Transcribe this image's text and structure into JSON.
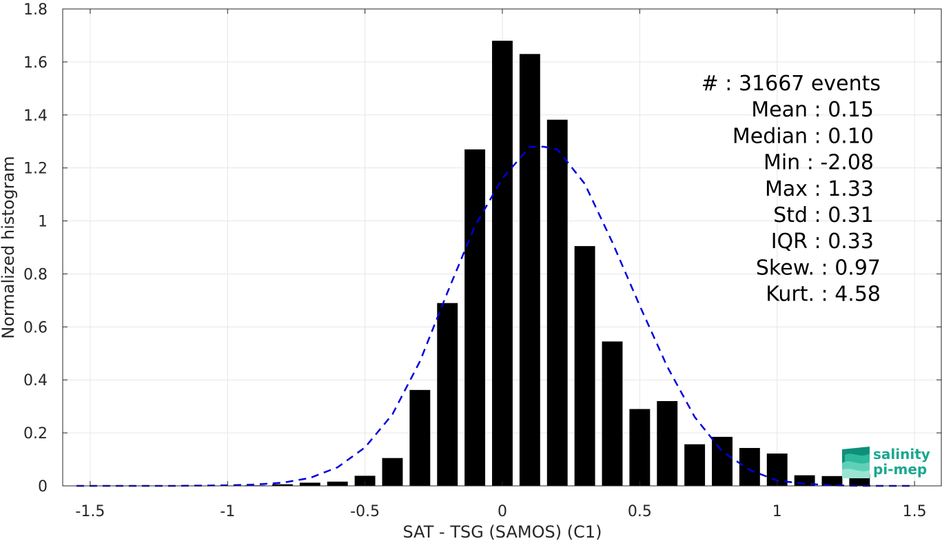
{
  "chart_data": {
    "type": "bar",
    "xlabel": "SAT - TSG (SAMOS) (C1)",
    "ylabel": "Normalized histogram",
    "xlim": [
      -1.6,
      1.6
    ],
    "ylim": [
      0,
      1.8
    ],
    "xticks": [
      -1.5,
      -1,
      -0.5,
      0,
      0.5,
      1,
      1.5
    ],
    "xtick_labels": [
      "-1.5",
      "-1",
      "-0.5",
      "0",
      "0.5",
      "1",
      "1.5"
    ],
    "yticks": [
      0,
      0.2,
      0.4,
      0.6,
      0.8,
      1,
      1.2,
      1.4,
      1.6,
      1.8
    ],
    "ytick_labels": [
      "0",
      "0.2",
      "0.4",
      "0.6",
      "0.8",
      "1",
      "1.2",
      "1.4",
      "1.6",
      "1.8"
    ],
    "grid": true,
    "bar_width": 0.075,
    "bar_color": "#000000",
    "x": [
      -1.5,
      -1.4,
      -1.3,
      -1.2,
      -1.1,
      -1.0,
      -0.9,
      -0.8,
      -0.7,
      -0.6,
      -0.5,
      -0.4,
      -0.3,
      -0.2,
      -0.1,
      0.0,
      0.1,
      0.2,
      0.3,
      0.4,
      0.5,
      0.6,
      0.7,
      0.8,
      0.9,
      1.0,
      1.1,
      1.2,
      1.3
    ],
    "values": [
      0.0,
      0.0,
      0.0,
      0.0,
      0.0,
      0.001,
      0.002,
      0.006,
      0.012,
      0.016,
      0.038,
      0.105,
      0.362,
      0.69,
      1.27,
      1.68,
      1.63,
      1.382,
      0.905,
      0.545,
      0.29,
      0.32,
      0.157,
      0.185,
      0.143,
      0.122,
      0.04,
      0.037,
      0.045
    ],
    "fit": {
      "style": "dashed",
      "color": "#0000dd",
      "x": [
        -1.55,
        -1.4,
        -1.3,
        -1.2,
        -1.1,
        -1.0,
        -0.9,
        -0.8,
        -0.7,
        -0.6,
        -0.5,
        -0.4,
        -0.3,
        -0.2,
        -0.1,
        0.0,
        0.1,
        0.15,
        0.2,
        0.3,
        0.4,
        0.5,
        0.6,
        0.7,
        0.8,
        0.9,
        1.0,
        1.1,
        1.2,
        1.3,
        1.4,
        1.5
      ],
      "y": [
        0.0,
        0.0,
        0.0,
        0.0,
        0.001,
        0.002,
        0.005,
        0.012,
        0.03,
        0.07,
        0.145,
        0.27,
        0.47,
        0.73,
        0.98,
        1.16,
        1.28,
        1.28,
        1.27,
        1.14,
        0.92,
        0.68,
        0.45,
        0.26,
        0.13,
        0.06,
        0.02,
        0.008,
        0.002,
        0.0,
        0.0,
        0.0
      ]
    },
    "stats": [
      "#  : 31667 events",
      "Mean : 0.15",
      "Median : 0.10",
      "Min : -2.08",
      "Max : 1.33",
      "Std : 0.31",
      "IQR : 0.33",
      "Skew. : 0.97",
      "Kurt. : 4.58"
    ]
  },
  "logo": {
    "line1": "salinity",
    "line2": "pi-mep",
    "color": "#1aa88f"
  }
}
